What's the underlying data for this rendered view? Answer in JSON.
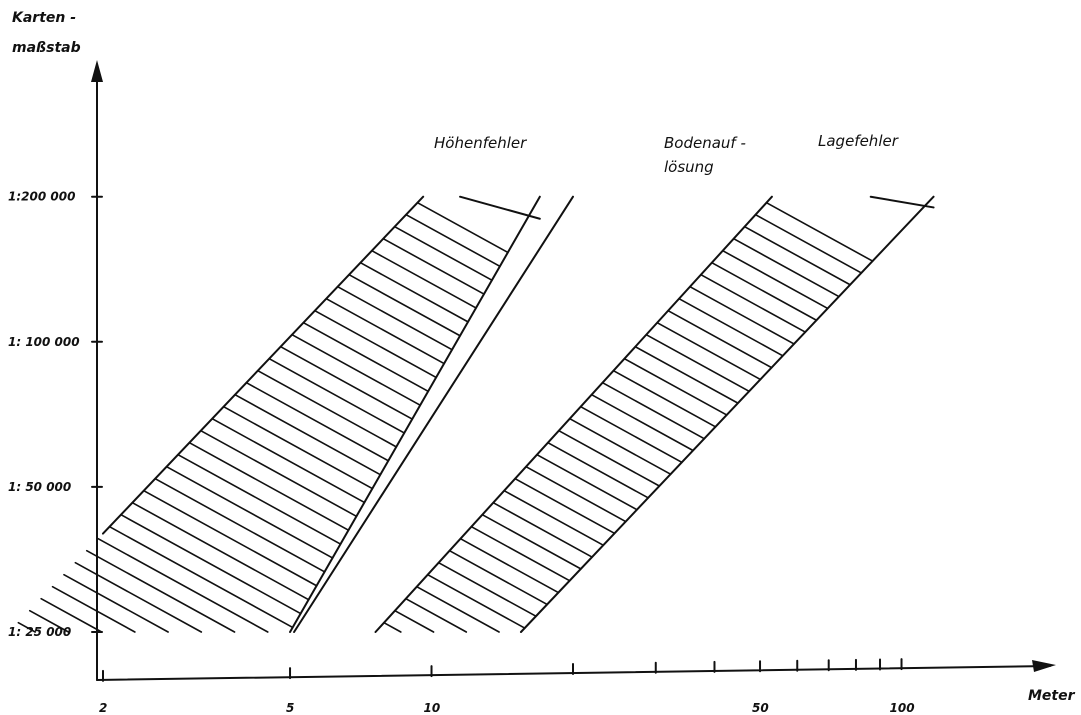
{
  "chart_data": {
    "type": "area",
    "x_axis": {
      "label": "Meter",
      "scale": "log",
      "tick_values": [
        2,
        5,
        10,
        20,
        30,
        40,
        50,
        60,
        70,
        80,
        90,
        100
      ],
      "tick_labels": [
        "2",
        "5",
        "10",
        "",
        "",
        "",
        "50",
        "",
        "",
        "",
        "",
        "100"
      ]
    },
    "y_axis": {
      "label_line1": "Karten -",
      "label_line2": "maßstab",
      "scale": "log",
      "tick_values": [
        25000,
        50000,
        100000,
        200000
      ],
      "tick_labels": [
        "1:  25 000",
        "1:  50 000",
        "1: 100 000",
        "1:200 000"
      ]
    },
    "series": [
      {
        "name": "Höhenfehler",
        "kind": "hatched-band",
        "lower": {
          "x": [
            2,
            9.6
          ],
          "y": [
            40000,
            200000
          ]
        },
        "upper": {
          "x": [
            5,
            17
          ],
          "y": [
            25000,
            200000
          ]
        },
        "upper_top": {
          "x": [
            11.5,
            17
          ],
          "y": [
            200000,
            180000
          ]
        },
        "hatch_step": 12
      },
      {
        "name_line1": "Bodenauf -",
        "name_line2": "lösung",
        "kind": "line",
        "x": [
          5.1,
          20
        ],
        "y": [
          25000,
          200000
        ]
      },
      {
        "name": "Lagefehler",
        "kind": "hatched-band",
        "lower": {
          "x": [
            7.6,
            53
          ],
          "y": [
            25000,
            200000
          ]
        },
        "upper": {
          "x": [
            15.5,
            117
          ],
          "y": [
            25000,
            200000
          ]
        },
        "upper_top": {
          "x": [
            86,
            117
          ],
          "y": [
            200000,
            190000
          ]
        },
        "hatch_step": 12
      }
    ],
    "grid": false,
    "legend": "none"
  }
}
